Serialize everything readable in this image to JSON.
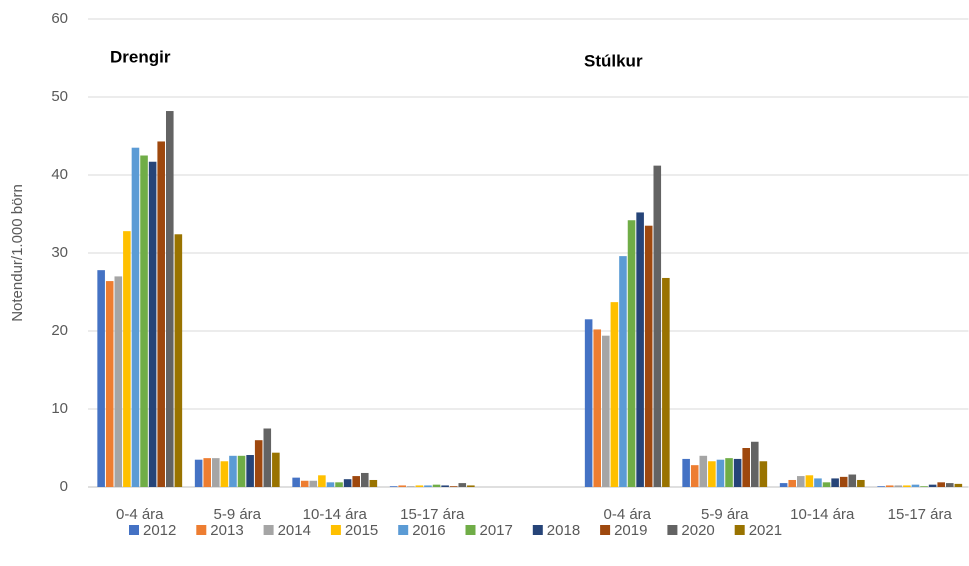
{
  "chart_data": {
    "type": "bar",
    "y_label": "Notendur/1.000 börn",
    "annotations": [
      "Drengir",
      "Stúlkur"
    ],
    "categories": [
      "0-4 ára",
      "5-9 ára",
      "10-14 ára",
      "15-17 ára",
      null,
      "0-4 ára",
      "5-9 ára",
      "10-14 ára",
      "15-17 ára"
    ],
    "series": [
      {
        "name": "2012",
        "color": "#4472c4",
        "values": [
          27.8,
          3.5,
          1.2,
          0.1,
          null,
          21.5,
          3.6,
          0.5,
          0.1
        ]
      },
      {
        "name": "2013",
        "color": "#ed7d31",
        "values": [
          26.4,
          3.7,
          0.8,
          0.2,
          null,
          20.2,
          2.8,
          0.9,
          0.2
        ]
      },
      {
        "name": "2014",
        "color": "#a5a5a5",
        "values": [
          27.0,
          3.7,
          0.8,
          0.1,
          null,
          19.4,
          4.0,
          1.4,
          0.2
        ]
      },
      {
        "name": "2015",
        "color": "#ffc000",
        "values": [
          32.8,
          3.3,
          1.5,
          0.2,
          null,
          23.7,
          3.3,
          1.5,
          0.2
        ]
      },
      {
        "name": "2016",
        "color": "#5b9bd5",
        "values": [
          43.5,
          4.0,
          0.6,
          0.2,
          null,
          29.6,
          3.5,
          1.1,
          0.3
        ]
      },
      {
        "name": "2017",
        "color": "#70ad47",
        "values": [
          42.5,
          4.0,
          0.6,
          0.3,
          null,
          34.2,
          3.7,
          0.6,
          0.1
        ]
      },
      {
        "name": "2018",
        "color": "#264478",
        "values": [
          41.7,
          4.1,
          1.0,
          0.2,
          null,
          35.2,
          3.6,
          1.1,
          0.3
        ]
      },
      {
        "name": "2019",
        "color": "#9e480e",
        "values": [
          44.3,
          6.0,
          1.4,
          0.1,
          null,
          33.5,
          5.0,
          1.3,
          0.6
        ]
      },
      {
        "name": "2020",
        "color": "#636363",
        "values": [
          48.2,
          7.5,
          1.8,
          0.5,
          null,
          41.2,
          5.8,
          1.6,
          0.5
        ]
      },
      {
        "name": "2021",
        "color": "#997300",
        "values": [
          32.4,
          4.4,
          0.9,
          0.2,
          null,
          26.8,
          3.3,
          0.9,
          0.4
        ]
      }
    ],
    "ylim": [
      0,
      60
    ],
    "yticks": [
      0,
      10,
      20,
      30,
      40,
      50,
      60
    ],
    "grid": true,
    "legend": "bottom"
  }
}
